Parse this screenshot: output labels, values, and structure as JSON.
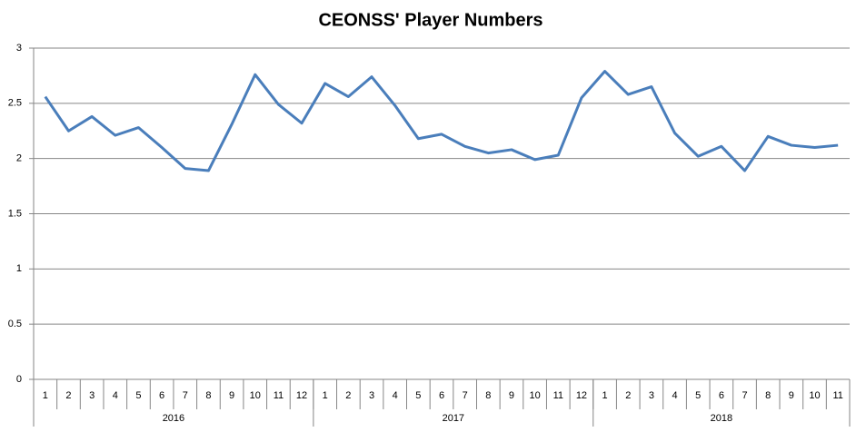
{
  "chart_data": {
    "type": "line",
    "title": "CEONSS' Player Numbers",
    "groups": [
      {
        "name": "2016",
        "categories": [
          "1",
          "2",
          "3",
          "4",
          "5",
          "6",
          "7",
          "8",
          "9",
          "10",
          "11",
          "12"
        ]
      },
      {
        "name": "2017",
        "categories": [
          "1",
          "2",
          "3",
          "4",
          "5",
          "6",
          "7",
          "8",
          "9",
          "10",
          "11",
          "12"
        ]
      },
      {
        "name": "2018",
        "categories": [
          "1",
          "2",
          "3",
          "4",
          "5",
          "6",
          "7",
          "8",
          "9",
          "10",
          "11"
        ]
      }
    ],
    "series": [
      {
        "color": "#4a7ebb",
        "values": [
          2.56,
          2.25,
          2.38,
          2.21,
          2.28,
          2.1,
          1.91,
          1.89,
          2.31,
          2.76,
          2.49,
          2.32,
          2.68,
          2.56,
          2.74,
          2.48,
          2.18,
          2.22,
          2.11,
          2.05,
          2.08,
          1.99,
          2.03,
          2.55,
          2.79,
          2.58,
          2.65,
          2.23,
          2.02,
          2.11,
          1.89,
          2.2,
          2.12,
          2.1,
          2.12
        ]
      }
    ],
    "ylim": [
      0,
      3
    ],
    "yticks": [
      0,
      0.5,
      1,
      1.5,
      2,
      2.5,
      3
    ],
    "grid": true
  }
}
